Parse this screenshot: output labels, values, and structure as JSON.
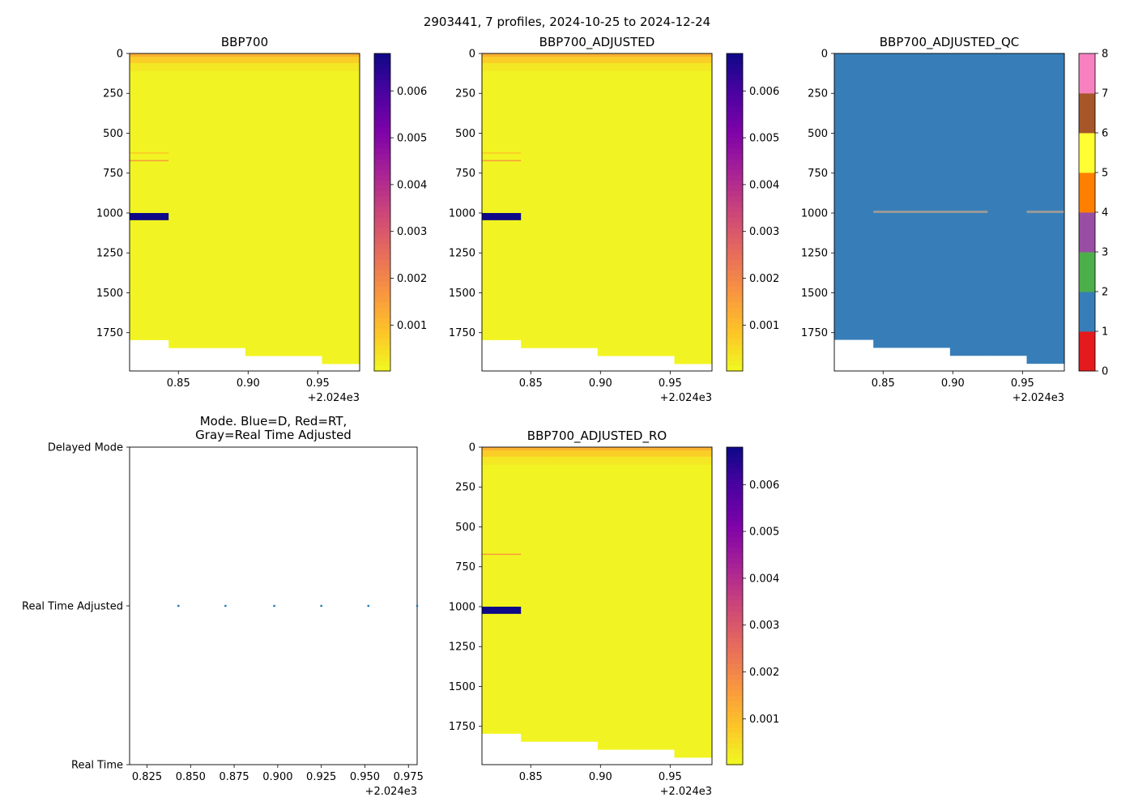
{
  "figure_title": "2903441, 7 profiles, 2024-10-25 to 2024-12-24",
  "colors": {
    "plasma_r_stops": [
      "#f0f921",
      "#fdc328",
      "#f89441",
      "#e56b5d",
      "#cb4679",
      "#a82296",
      "#7e03a8",
      "#4c02a1",
      "#0d0887"
    ],
    "qc_colors": [
      "#e41a1c",
      "#377eb8",
      "#4daf4a",
      "#984ea3",
      "#ff7f00",
      "#ffff33",
      "#a65628",
      "#f781bf",
      "#999999"
    ],
    "mode_dot": "#1f77b4"
  },
  "chart_data": [
    {
      "id": "bbp700",
      "type": "heatmap",
      "title": "BBP700",
      "xlabel": "",
      "ylabel": "",
      "xlim": [
        2024.815,
        2024.98
      ],
      "ylim": [
        1990,
        0
      ],
      "x_ticks": [
        {
          "v": 2024.85,
          "label": "0.85"
        },
        {
          "v": 2024.9,
          "label": "0.90"
        },
        {
          "v": 2024.95,
          "label": "0.95"
        }
      ],
      "x_offset_label": "+2.024e3",
      "y_ticks": [
        0,
        250,
        500,
        750,
        1000,
        1250,
        1500,
        1750
      ],
      "colorbar": {
        "min": 2e-05,
        "max": 0.0068,
        "ticks": [
          "0.001",
          "0.002",
          "0.003",
          "0.004",
          "0.005",
          "0.006"
        ],
        "tick_values": [
          0.001,
          0.002,
          0.003,
          0.004,
          0.005,
          0.006
        ]
      },
      "profiles": [
        {
          "x0": 2024.815,
          "x1": 2024.843,
          "max_depth": 1795
        },
        {
          "x0": 2024.843,
          "x1": 2024.87,
          "max_depth": 1845
        },
        {
          "x0": 2024.87,
          "x1": 2024.898,
          "max_depth": 1845
        },
        {
          "x0": 2024.898,
          "x1": 2024.925,
          "max_depth": 1895
        },
        {
          "x0": 2024.925,
          "x1": 2024.953,
          "max_depth": 1895
        },
        {
          "x0": 2024.953,
          "x1": 2024.98,
          "max_depth": 1945
        }
      ],
      "layers": [
        {
          "d0": 0,
          "d1": 20,
          "value": 0.0012
        },
        {
          "d0": 20,
          "d1": 60,
          "value": 0.0007
        },
        {
          "d0": 60,
          "d1": 110,
          "value": 0.0003
        },
        {
          "d0": 110,
          "d1": 2000,
          "value": 0.0001
        }
      ],
      "anomalies": [
        {
          "profile": 0,
          "d0": 1000,
          "d1": 1045,
          "value": 0.0068
        },
        {
          "profile": 0,
          "d0": 620,
          "d1": 626,
          "value": 0.0008
        },
        {
          "profile": 0,
          "d0": 668,
          "d1": 674,
          "value": 0.0016
        }
      ]
    },
    {
      "id": "bbp700_adjusted",
      "type": "heatmap",
      "title": "BBP700_ADJUSTED",
      "xlabel": "",
      "ylabel": "",
      "xlim": [
        2024.815,
        2024.98
      ],
      "ylim": [
        1990,
        0
      ],
      "x_ticks": [
        {
          "v": 2024.85,
          "label": "0.85"
        },
        {
          "v": 2024.9,
          "label": "0.90"
        },
        {
          "v": 2024.95,
          "label": "0.95"
        }
      ],
      "x_offset_label": "+2.024e3",
      "y_ticks": [
        0,
        250,
        500,
        750,
        1000,
        1250,
        1500,
        1750
      ],
      "colorbar": {
        "min": 2e-05,
        "max": 0.0068,
        "ticks": [
          "0.001",
          "0.002",
          "0.003",
          "0.004",
          "0.005",
          "0.006"
        ],
        "tick_values": [
          0.001,
          0.002,
          0.003,
          0.004,
          0.005,
          0.006
        ]
      },
      "profiles": [
        {
          "x0": 2024.815,
          "x1": 2024.843,
          "max_depth": 1795
        },
        {
          "x0": 2024.843,
          "x1": 2024.87,
          "max_depth": 1845
        },
        {
          "x0": 2024.87,
          "x1": 2024.898,
          "max_depth": 1845
        },
        {
          "x0": 2024.898,
          "x1": 2024.925,
          "max_depth": 1895
        },
        {
          "x0": 2024.925,
          "x1": 2024.953,
          "max_depth": 1895
        },
        {
          "x0": 2024.953,
          "x1": 2024.98,
          "max_depth": 1945
        }
      ],
      "layers": [
        {
          "d0": 0,
          "d1": 20,
          "value": 0.0012
        },
        {
          "d0": 20,
          "d1": 60,
          "value": 0.0007
        },
        {
          "d0": 60,
          "d1": 110,
          "value": 0.0003
        },
        {
          "d0": 110,
          "d1": 2000,
          "value": 0.0001
        }
      ],
      "anomalies": [
        {
          "profile": 0,
          "d0": 1000,
          "d1": 1045,
          "value": 0.0068
        },
        {
          "profile": 0,
          "d0": 620,
          "d1": 626,
          "value": 0.0008
        },
        {
          "profile": 0,
          "d0": 668,
          "d1": 674,
          "value": 0.0016
        }
      ]
    },
    {
      "id": "bbp700_adjusted_qc",
      "type": "heatmap",
      "title": "BBP700_ADJUSTED_QC",
      "xlabel": "",
      "ylabel": "",
      "xlim": [
        2024.815,
        2024.98
      ],
      "ylim": [
        1990,
        0
      ],
      "x_ticks": [
        {
          "v": 2024.85,
          "label": "0.85"
        },
        {
          "v": 2024.9,
          "label": "0.90"
        },
        {
          "v": 2024.95,
          "label": "0.95"
        }
      ],
      "x_offset_label": "+2.024e3",
      "y_ticks": [
        0,
        250,
        500,
        750,
        1000,
        1250,
        1500,
        1750
      ],
      "colorbar": {
        "discrete": true,
        "min": 0,
        "max": 8,
        "tick_labels": [
          "0",
          "1",
          "2",
          "3",
          "4",
          "5",
          "6",
          "7",
          "8"
        ]
      },
      "profiles": [
        {
          "x0": 2024.815,
          "x1": 2024.843,
          "max_depth": 1795
        },
        {
          "x0": 2024.843,
          "x1": 2024.87,
          "max_depth": 1845
        },
        {
          "x0": 2024.87,
          "x1": 2024.898,
          "max_depth": 1845
        },
        {
          "x0": 2024.898,
          "x1": 2024.925,
          "max_depth": 1895
        },
        {
          "x0": 2024.925,
          "x1": 2024.953,
          "max_depth": 1895
        },
        {
          "x0": 2024.953,
          "x1": 2024.98,
          "max_depth": 1945
        }
      ],
      "base_flag": 1,
      "flag_marks": [
        {
          "x0": 2024.843,
          "x1": 2024.925,
          "d0": 985,
          "d1": 1000,
          "flag": 8
        },
        {
          "x0": 2024.953,
          "x1": 2024.98,
          "d0": 985,
          "d1": 1000,
          "flag": 8
        }
      ]
    },
    {
      "id": "mode",
      "type": "scatter",
      "title_lines": [
        "Mode. Blue=D, Red=RT,",
        "Gray=Real Time Adjusted"
      ],
      "xlabel": "",
      "ylabel": "",
      "xlim": [
        2024.815,
        2024.98
      ],
      "ylim": [
        0,
        2
      ],
      "x_ticks": [
        {
          "v": 2024.825,
          "label": "0.825"
        },
        {
          "v": 2024.85,
          "label": "0.850"
        },
        {
          "v": 2024.875,
          "label": "0.875"
        },
        {
          "v": 2024.9,
          "label": "0.900"
        },
        {
          "v": 2024.925,
          "label": "0.925"
        },
        {
          "v": 2024.95,
          "label": "0.950"
        },
        {
          "v": 2024.975,
          "label": "0.975"
        }
      ],
      "x_offset_label": "+2.024e3",
      "y_categories": [
        {
          "v": 2,
          "label": "Delayed Mode"
        },
        {
          "v": 1,
          "label": "Real Time Adjusted"
        },
        {
          "v": 0,
          "label": "Real Time"
        }
      ],
      "points": [
        {
          "x": 2024.843,
          "y": 1
        },
        {
          "x": 2024.87,
          "y": 1
        },
        {
          "x": 2024.898,
          "y": 1
        },
        {
          "x": 2024.925,
          "y": 1
        },
        {
          "x": 2024.952,
          "y": 1
        },
        {
          "x": 2024.98,
          "y": 1
        }
      ]
    },
    {
      "id": "bbp700_adjusted_ro",
      "type": "heatmap",
      "title": "BBP700_ADJUSTED_RO",
      "xlabel": "",
      "ylabel": "",
      "xlim": [
        2024.815,
        2024.98
      ],
      "ylim": [
        1990,
        0
      ],
      "x_ticks": [
        {
          "v": 2024.85,
          "label": "0.85"
        },
        {
          "v": 2024.9,
          "label": "0.90"
        },
        {
          "v": 2024.95,
          "label": "0.95"
        }
      ],
      "x_offset_label": "+2.024e3",
      "y_ticks": [
        0,
        250,
        500,
        750,
        1000,
        1250,
        1500,
        1750
      ],
      "colorbar": {
        "min": 2e-05,
        "max": 0.0068,
        "ticks": [
          "0.001",
          "0.002",
          "0.003",
          "0.004",
          "0.005",
          "0.006"
        ],
        "tick_values": [
          0.001,
          0.002,
          0.003,
          0.004,
          0.005,
          0.006
        ]
      },
      "profiles": [
        {
          "x0": 2024.815,
          "x1": 2024.843,
          "max_depth": 1795
        },
        {
          "x0": 2024.843,
          "x1": 2024.87,
          "max_depth": 1845
        },
        {
          "x0": 2024.87,
          "x1": 2024.898,
          "max_depth": 1845
        },
        {
          "x0": 2024.898,
          "x1": 2024.925,
          "max_depth": 1895
        },
        {
          "x0": 2024.925,
          "x1": 2024.953,
          "max_depth": 1895
        },
        {
          "x0": 2024.953,
          "x1": 2024.98,
          "max_depth": 1945
        }
      ],
      "layers": [
        {
          "d0": 0,
          "d1": 20,
          "value": 0.0012
        },
        {
          "d0": 20,
          "d1": 60,
          "value": 0.0007
        },
        {
          "d0": 60,
          "d1": 110,
          "value": 0.0003
        },
        {
          "d0": 110,
          "d1": 2000,
          "value": 0.0001
        }
      ],
      "anomalies": [
        {
          "profile": 0,
          "d0": 1000,
          "d1": 1045,
          "value": 0.0068
        },
        {
          "profile": 0,
          "d0": 668,
          "d1": 674,
          "value": 0.0016
        }
      ]
    }
  ]
}
